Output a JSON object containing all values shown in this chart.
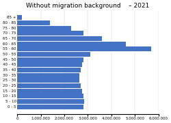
{
  "title": "Without migration background    – 2021",
  "title_fontsize": 6.5,
  "bar_color": "#4472C4",
  "age_groups": [
    "0 - 5",
    "5 - 10",
    "10 - 15",
    "15 - 20",
    "20 - 25",
    "25 - 30",
    "30 - 35",
    "35 - 40",
    "40 - 45",
    "45 - 50",
    "50 - 55",
    "55 - 60",
    "60 - 65",
    "65 - 70",
    "70 - 75",
    "75 - 80",
    "80 - 85",
    "85 +"
  ],
  "values": [
    2800000,
    2850000,
    2800000,
    2750000,
    2700000,
    2650000,
    2650000,
    2700000,
    2750000,
    2800000,
    3100000,
    5700000,
    4600000,
    3600000,
    2800000,
    2300000,
    1400000,
    200000
  ],
  "xlim": [
    0,
    6000000
  ],
  "xticks": [
    0,
    1000000,
    2000000,
    3000000,
    4000000,
    5000000,
    6000000
  ],
  "xtick_labels": [
    "0",
    "1.000.000",
    "2.000.000",
    "3.000.000",
    "4.000.000",
    "5.000.000",
    "6.000.000"
  ],
  "xlabel_fontsize": 4,
  "ylabel_fontsize": 4,
  "background_color": "#ffffff"
}
